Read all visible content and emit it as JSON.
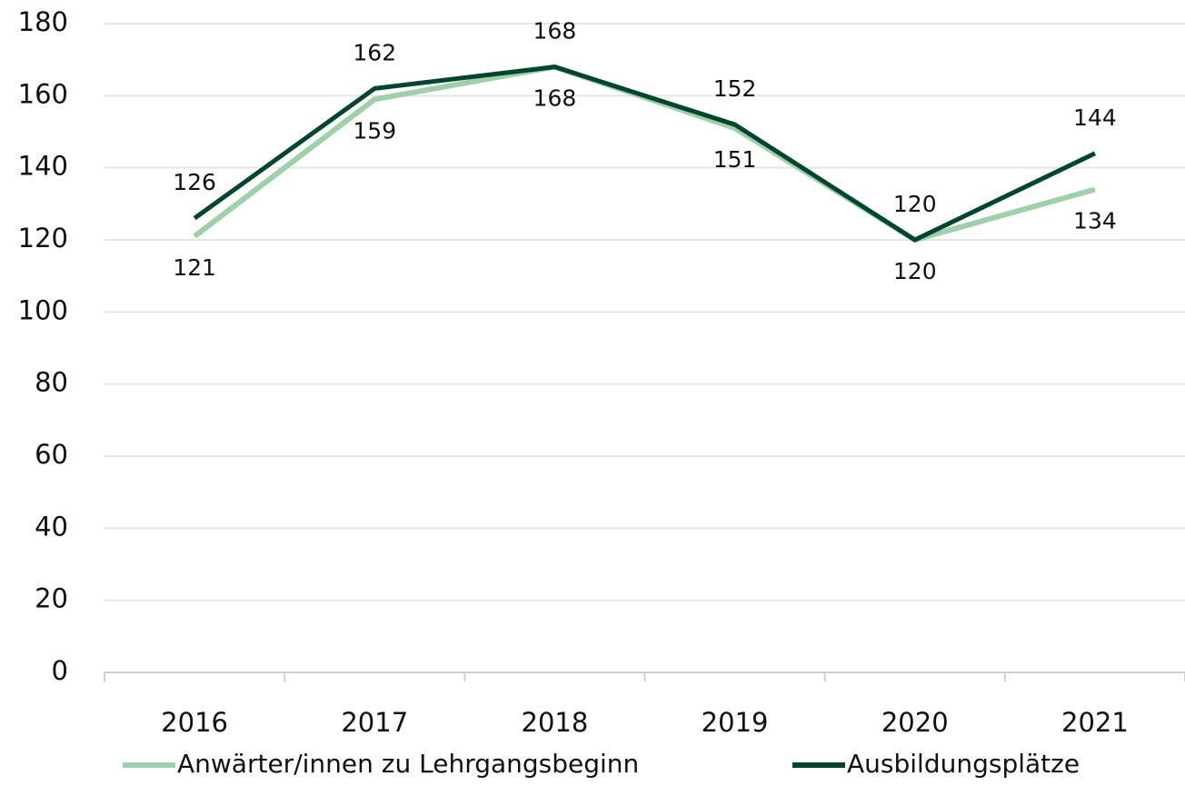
{
  "chart_data": {
    "type": "line",
    "categories": [
      "2016",
      "2017",
      "2018",
      "2019",
      "2020",
      "2021"
    ],
    "series": [
      {
        "name": "Anwärter/innen zu Lehrgangsbeginn",
        "color": "#9fd0a9",
        "values": [
          121,
          159,
          168,
          151,
          120,
          134
        ]
      },
      {
        "name": "Ausbildungsplätze",
        "color": "#00452f",
        "values": [
          126,
          162,
          168,
          152,
          120,
          144
        ]
      }
    ],
    "ylim": [
      0,
      180
    ],
    "yticks": [
      0,
      20,
      40,
      60,
      80,
      100,
      120,
      140,
      160,
      180
    ],
    "grid": true,
    "legend": "bottom"
  }
}
